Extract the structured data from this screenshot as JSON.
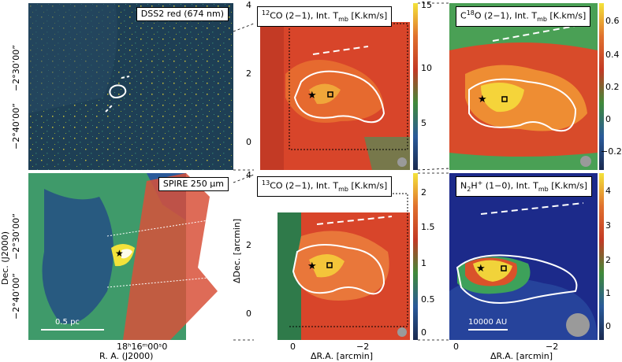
{
  "panels": {
    "dss2": {
      "label": "DSS2 red (674 nm)"
    },
    "spire": {
      "label": "SPIRE 250 μm",
      "scalebar": "0.5 pc"
    },
    "co12": {
      "label_pre": "12",
      "label_main": "CO (2−1),  Int. T",
      "label_sub": "mb",
      "label_unit": " [K.km/s]",
      "colorbar_ticks": [
        "15",
        "10",
        "5"
      ],
      "y_ticks": [
        "4",
        "2",
        "0"
      ]
    },
    "c18o": {
      "label_pre": "C",
      "label_iso": "18",
      "label_main": "O (2−1),  Int. T",
      "label_sub": "mb",
      "label_unit": " [K.km/s]",
      "colorbar_ticks": [
        "0.6",
        "0.4",
        "0.2",
        "0",
        "−0.2"
      ]
    },
    "co13": {
      "label_pre": "13",
      "label_main": "CO (2−1),  Int. T",
      "label_sub": "mb",
      "label_unit": " [K.km/s]",
      "colorbar_ticks": [
        "2",
        "1.5",
        "1",
        "0.5",
        "0"
      ],
      "y_ticks": [
        "4",
        "2",
        "0"
      ],
      "x_ticks": [
        "0",
        "−2"
      ]
    },
    "n2h": {
      "label_pre": "N",
      "label_sub1": "2",
      "label_mid": "H",
      "label_sup": "+",
      "label_main": " (1−0),  Int. T",
      "label_sub": "mb",
      "label_unit": " [K.km/s]",
      "colorbar_ticks": [
        "4",
        "3",
        "2",
        "1",
        "0"
      ],
      "x_ticks": [
        "0",
        "−2"
      ],
      "scalebar": "10000 AU"
    }
  },
  "axes": {
    "dec_ticks": [
      "−2°30’00”",
      "−2°40’00”"
    ],
    "dec_ticks_lower": [
      "−2°30’00”",
      "−2°40’00”"
    ],
    "dec_title": "Dec. (J2000)",
    "ra_tick": "18ʰ16ᵐ00ˢ0",
    "ra_title": "R. A. (J2000)",
    "ddec_title": "ΔDec. [arcmin]",
    "dra_title": "ΔR.A. [arcmin]",
    "dra_title2": "ΔR.A. [arcmin]"
  }
}
